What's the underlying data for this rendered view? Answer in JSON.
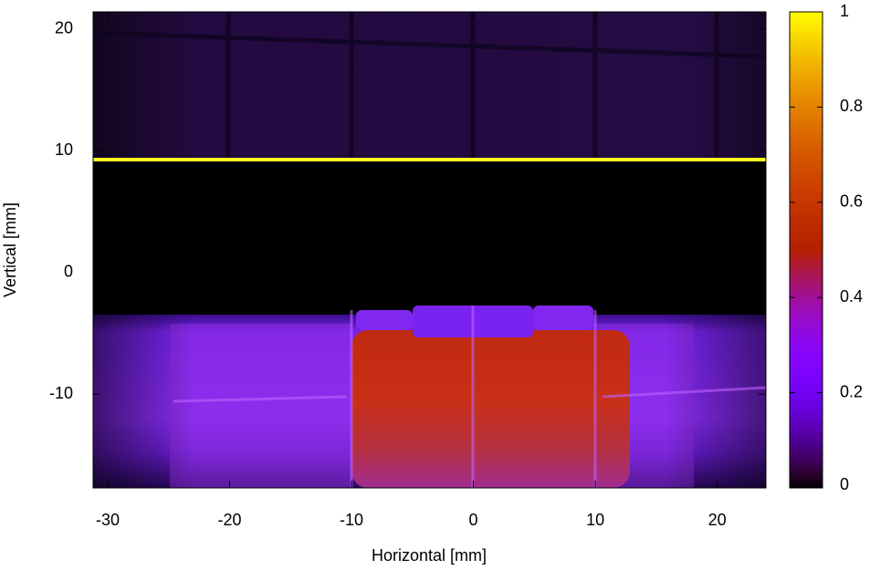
{
  "chart_data": {
    "type": "heatmap",
    "x_label": "Horizontal [mm]",
    "y_label": "Vertical [mm]",
    "xlim": [
      -31.2,
      24
    ],
    "xticks": [
      -30,
      -20,
      -10,
      0,
      10,
      20
    ],
    "ylim": [
      -17.7,
      21.4
    ],
    "yticks": [
      -10,
      0,
      10,
      20
    ],
    "colorbar": {
      "lim": [
        0,
        1
      ],
      "ticks": [
        0,
        0.2,
        0.4,
        0.6,
        0.8,
        1
      ]
    }
  }
}
